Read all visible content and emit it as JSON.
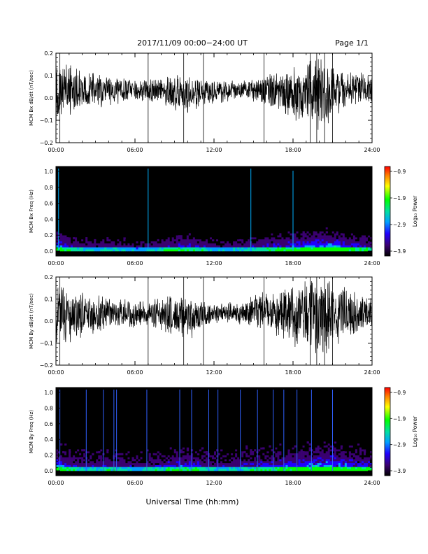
{
  "header": {
    "title": "2017/11/09  00:00−24:00 UT",
    "page_label": "Page 1/1"
  },
  "xlabel": "Universal Time (hh:mm)",
  "chart_data": [
    {
      "type": "line",
      "ylabel": "MCM Bx dB/dt (nT/sec)",
      "xlim": [
        0,
        24
      ],
      "ylim": [
        -0.2,
        0.2
      ],
      "x_ticks": [
        "00:00",
        "06:00",
        "12:00",
        "18:00",
        "24:00"
      ],
      "y_ticks": [
        "0.2",
        "0.1",
        "0.0",
        "−0.1",
        "−0.2"
      ],
      "x": [
        0,
        1,
        2,
        3,
        4,
        5,
        6,
        7,
        8,
        9,
        10,
        11,
        12,
        13,
        14,
        15,
        16,
        17,
        18,
        19,
        20,
        21,
        22,
        23,
        24
      ],
      "upper": [
        0.2,
        0.16,
        0.12,
        0.12,
        0.11,
        0.1,
        0.09,
        0.09,
        0.09,
        0.11,
        0.12,
        0.1,
        0.09,
        0.08,
        0.08,
        0.09,
        0.11,
        0.12,
        0.14,
        0.18,
        0.2,
        0.16,
        0.13,
        0.12,
        0.12
      ],
      "lower": [
        -0.12,
        -0.08,
        -0.06,
        -0.05,
        -0.04,
        -0.03,
        -0.02,
        -0.02,
        -0.03,
        -0.06,
        -0.08,
        -0.05,
        -0.03,
        -0.02,
        -0.01,
        -0.02,
        -0.05,
        -0.08,
        -0.1,
        -0.12,
        -0.18,
        -0.1,
        -0.06,
        -0.04,
        -0.04
      ]
    },
    {
      "type": "heatmap",
      "ylabel": "MCM Bx Freq (Hz)",
      "xlim": [
        0,
        24
      ],
      "ylim": [
        0,
        1
      ],
      "x_ticks": [
        "00:00",
        "06:00",
        "12:00",
        "18:00",
        "24:00"
      ],
      "y_ticks": [
        "1.0",
        "0.8",
        "0.6",
        "0.4",
        "0.2",
        "0.0"
      ],
      "colorbar": {
        "label": "Log₁₀ Power",
        "ticks": [
          "−0.9",
          "−1.9",
          "−2.9",
          "−3.9"
        ],
        "range": [
          -3.9,
          -0.9
        ]
      }
    },
    {
      "type": "line",
      "ylabel": "MCM By dB/dt (nT/sec)",
      "xlim": [
        0,
        24
      ],
      "ylim": [
        -0.2,
        0.2
      ],
      "x_ticks": [
        "00:00",
        "06:00",
        "12:00",
        "18:00",
        "24:00"
      ],
      "y_ticks": [
        "0.2",
        "0.1",
        "0.0",
        "−0.1",
        "−0.2"
      ],
      "x": [
        0,
        1,
        2,
        3,
        4,
        5,
        6,
        7,
        8,
        9,
        10,
        11,
        12,
        13,
        14,
        15,
        16,
        17,
        18,
        19,
        20,
        21,
        22,
        23,
        24
      ],
      "upper": [
        0.2,
        0.18,
        0.13,
        0.12,
        0.12,
        0.11,
        0.1,
        0.1,
        0.11,
        0.13,
        0.14,
        0.1,
        0.08,
        0.09,
        0.1,
        0.12,
        0.14,
        0.15,
        0.17,
        0.2,
        0.2,
        0.2,
        0.16,
        0.13,
        0.12
      ],
      "lower": [
        -0.2,
        -0.12,
        -0.08,
        -0.06,
        -0.05,
        -0.04,
        -0.03,
        -0.03,
        -0.05,
        -0.08,
        -0.1,
        -0.06,
        -0.02,
        -0.01,
        -0.02,
        -0.03,
        -0.06,
        -0.1,
        -0.12,
        -0.16,
        -0.2,
        -0.14,
        -0.09,
        -0.06,
        -0.05
      ]
    },
    {
      "type": "heatmap",
      "ylabel": "MCM By Freq (Hz)",
      "xlim": [
        0,
        24
      ],
      "ylim": [
        0,
        1
      ],
      "x_ticks": [
        "00:00",
        "06:00",
        "12:00",
        "18:00",
        "24:00"
      ],
      "y_ticks": [
        "1.0",
        "0.8",
        "0.6",
        "0.4",
        "0.2",
        "0.0"
      ],
      "colorbar": {
        "label": "Log₁₀ Power",
        "ticks": [
          "−0.9",
          "−1.9",
          "−2.9",
          "−3.9"
        ],
        "range": [
          -3.9,
          -0.9
        ]
      }
    }
  ]
}
